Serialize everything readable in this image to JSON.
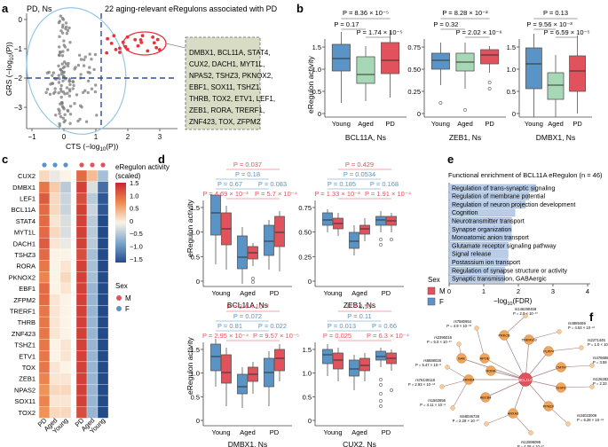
{
  "panels": {
    "a": "a",
    "b": "b",
    "c": "c",
    "d": "d",
    "e": "e",
    "f": "f"
  },
  "panel_a": {
    "label": "PD, Ns",
    "callout": "22 aging-relevant eRegulons associated with PD",
    "xlabel_main": "CTS (−log",
    "xlabel_sub": "10",
    "xlabel_end": "(P))",
    "ylabel_main": "GRS (−log",
    "ylabel_sub": "10",
    "ylabel_end": "(P))",
    "xticks": [
      "−1",
      "0",
      "1",
      "2",
      "3"
    ],
    "yticks": [
      "0",
      "−1",
      "−2",
      "−3"
    ],
    "gene_box_lines": [
      "DMBX1, BCL11A, STAT4,",
      "CUX2, DACH1, MYT1L,",
      "NPAS2, TSHZ3, PKNOX2,",
      "EBF1, SOX11, TSHZ1,",
      "THRB, TOX2, ETV1, LEF1,",
      "ZEB1, RORA, TRERF1,",
      "ZNF423, TOX, ZFPM2"
    ],
    "colors": {
      "grey_points": "#7a7a7a",
      "red_points": "#e8323c",
      "threshold": "#2a4d9b",
      "ellipse_blue": "#8cc3e6",
      "ellipse_red": "#e8323c",
      "box_fill": "#d9dcc4"
    }
  },
  "panel_b": {
    "ylabel": "eRegulon activity",
    "groups": [
      "Young",
      "Aged",
      "PD"
    ],
    "colors": [
      "#5a93c6",
      "#a7d8b6",
      "#e2525c"
    ],
    "plots": [
      {
        "title": "BCL11A, Ns",
        "p_top": "P = 8.36 × 10⁻⁵",
        "p_left": "P = 0.17",
        "p_right": "P = 1.74 × 10⁻⁵",
        "yticks": [
          "0",
          "0.5",
          "1.0",
          "1.5"
        ]
      },
      {
        "title": "ZEB1, Ns",
        "p_top": "P = 8.28 × 10⁻²",
        "p_left": "P = 0.32",
        "p_right": "P = 2.02 × 10⁻⁶",
        "yticks": [
          "0",
          "0.25",
          "0.50",
          "0.75"
        ]
      },
      {
        "title": "DMBX1, Ns",
        "p_top": "P = 0.13",
        "p_left": "P = 9.56 × 10⁻³",
        "p_right": "P = 6.59 × 10⁻⁵",
        "yticks": [
          "0",
          "0.5",
          "1.0",
          "1.5"
        ]
      }
    ]
  },
  "panel_c": {
    "legend_title": "eRegulon activity\n(scaled)",
    "legend_title_1": "eRegulon activity",
    "legend_title_2": "(scaled)",
    "legend_ticks": [
      "1.5",
      "1.0",
      "0.5",
      "0",
      "−0.5",
      "−1.0",
      "−1.5"
    ],
    "sex_title": "Sex",
    "sex_m": "M",
    "sex_f": "F",
    "columns": [
      "PD",
      "Aged",
      "Young",
      "PD",
      "Aged",
      "Young"
    ],
    "genes": [
      "CUX2",
      "DMBX1",
      "LEF1",
      "BCL11A",
      "STAT4",
      "MYT1L",
      "DACH1",
      "TSHZ3",
      "RORA",
      "PKNOX2",
      "EBF1",
      "ZFPM2",
      "TRERF1",
      "THRB",
      "ZNF423",
      "TSHZ1",
      "ETV1",
      "TOX",
      "ZEB1",
      "NPAS2",
      "SOX11",
      "TOX2"
    ],
    "heatmap_values": [
      [
        0.2,
        -0.1,
        0.0,
        1.0,
        0.4,
        -0.5
      ],
      [
        0.9,
        0.3,
        -0.4,
        1.3,
        -0.2,
        -1.2
      ],
      [
        1.1,
        0.2,
        -0.3,
        1.2,
        -0.4,
        -1.4
      ],
      [
        1.0,
        0.2,
        -0.3,
        1.3,
        -0.3,
        -1.4
      ],
      [
        1.0,
        0.1,
        -0.2,
        1.3,
        -0.4,
        -1.5
      ],
      [
        1.0,
        0.2,
        -0.2,
        1.3,
        -0.4,
        -1.5
      ],
      [
        1.1,
        0.1,
        -0.1,
        1.3,
        -0.4,
        -1.5
      ],
      [
        1.0,
        0.0,
        0.0,
        1.2,
        -0.5,
        -1.5
      ],
      [
        0.9,
        0.0,
        0.1,
        1.3,
        -0.5,
        -1.5
      ],
      [
        0.8,
        0.0,
        0.2,
        1.3,
        -0.5,
        -1.5
      ],
      [
        1.0,
        0.0,
        0.1,
        1.3,
        -0.6,
        -1.5
      ],
      [
        1.0,
        0.1,
        0.0,
        1.3,
        -0.6,
        -1.5
      ],
      [
        0.9,
        0.1,
        0.0,
        1.3,
        -0.6,
        -1.5
      ],
      [
        0.9,
        0.1,
        0.0,
        1.3,
        -0.6,
        -1.5
      ],
      [
        0.9,
        0.1,
        0.0,
        1.3,
        -0.6,
        -1.5
      ],
      [
        0.9,
        0.0,
        0.1,
        1.3,
        -0.6,
        -1.5
      ],
      [
        0.9,
        0.0,
        0.1,
        1.3,
        -0.6,
        -1.5
      ],
      [
        0.9,
        0.1,
        0.0,
        1.3,
        -0.6,
        -1.5
      ],
      [
        0.8,
        0.1,
        0.1,
        1.3,
        -0.6,
        -1.5
      ],
      [
        0.7,
        0.2,
        0.2,
        1.3,
        -0.6,
        -1.5
      ],
      [
        0.8,
        0.1,
        0.1,
        1.3,
        -0.6,
        -1.5
      ],
      [
        0.7,
        0.2,
        0.2,
        1.2,
        -0.6,
        -1.5
      ]
    ],
    "sex_colors": {
      "M": "#e2525c",
      "F": "#5a93c6"
    }
  },
  "panel_d": {
    "ylabel": "eRegulon activity",
    "groups": [
      "Young",
      "Aged",
      "PD"
    ],
    "sex_title": "Sex",
    "sex_m": "M",
    "sex_f": "F",
    "colors": {
      "M": "#e2525c",
      "F": "#5a93c6",
      "m_text": "#e2525c",
      "f_text": "#5a93c6"
    },
    "plots": [
      {
        "title": "BCL11A, Ns",
        "p1": "P = 0.037",
        "p2": "P = 0.18",
        "p3a": "P = 0.67",
        "p3b": "P = 0.083",
        "p4a": "P = 4.69 × 10⁻³",
        "p4b": "P = 5.7 × 10⁻⁴",
        "yticks": [
          "0",
          "0.5",
          "1.0",
          "1.5"
        ]
      },
      {
        "title": "ZEB1, Ns",
        "p1": "P = 0.429",
        "p2": "P = 0.0534",
        "p3a": "P = 0.185",
        "p3b": "P = 0.168",
        "p4a": "P = 1.33 × 10⁻³",
        "p4b": "P = 1.91 × 10⁻⁴",
        "yticks": [
          "0",
          "0.25",
          "0.50",
          "0.75"
        ]
      },
      {
        "title": "DMBX1, Ns",
        "p1": "P = 3.4 × 10⁻³",
        "p2": "P = 0.072",
        "p3a": "P = 0.81",
        "p3b": "P = 0.022",
        "p4a": "P = 2.95 × 10⁻⁴",
        "p4b": "P = 9.57 × 10⁻⁵",
        "yticks": [
          "0",
          "0.5",
          "1.0",
          "1.5"
        ]
      },
      {
        "title": "CUX2, Ns",
        "p1": "P = 0.59",
        "p2": "P = 0.11",
        "p3a": "P = 0.013",
        "p3b": "P = 0.66",
        "p4a": "P = 0.025",
        "p4b": "P = 6.3 × 10⁻⁴",
        "yticks": [
          "0",
          "0.5",
          "1.0",
          "1.5"
        ]
      }
    ]
  },
  "panel_e": {
    "title": "Functional enrichment of BCL11A eRegulon (n = 46)",
    "xlabel": "−log",
    "xlabel_sub": "10",
    "xlabel_end": "(FDR)",
    "xticks": [
      "0",
      "1",
      "2",
      "3",
      "4"
    ],
    "bar_color": "#b9cde8",
    "terms": [
      "Regulation of trans-synaptic signaling",
      "Regulation of membrane potential",
      "Regulation of neuron projection development",
      "Cognition",
      "Neurotransmitter transport",
      "Synapse organization",
      "Monoatomic anion transport",
      "Glutamate receptor signaling pathway",
      "Signal release",
      "Postassium ion transport",
      "Regulation of synapse structure or activity",
      "Synaptic transmission, GABAergic"
    ],
    "values": [
      2.5,
      2.3,
      2.2,
      1.9,
      1.8,
      1.8,
      1.8,
      1.7,
      1.7,
      1.7,
      1.6,
      1.6
    ]
  },
  "panel_f": {
    "center": "BCL11A",
    "colors": {
      "center": "#e2525c",
      "node": "#f0a55a",
      "snp": "#f5cda0",
      "edge": "#a58080"
    },
    "nodes": [
      "APOE",
      "PRKCB",
      "TMEM163",
      "PLPP4",
      "CMTM",
      "IGSF8",
      "PPM1F",
      "ANXA3",
      "ABCB4",
      "FRMD4",
      "GAK",
      "RORA"
    ],
    "snps": [
      {
        "id": "rs146290458",
        "p": "P = 2.0 × 10⁻¹⁰"
      },
      {
        "id": "rs7580954",
        "p": "P = 4.9 × 10⁻¹²"
      },
      {
        "id": "rs4889469",
        "p": "P = 4.53 × 10⁻¹²"
      },
      {
        "id": "rs2395016",
        "p": "P = 5.0 × 10⁻¹⁰"
      },
      {
        "id": "rs2271445",
        "p": "P = 1.0 × 10⁻¹²"
      },
      {
        "id": "rs6888028",
        "p": "P = 5.47 × 10⁻⁸"
      },
      {
        "id": "rs4786850",
        "p": "P = 3.59 × 10⁻¹²"
      },
      {
        "id": "rs76149118",
        "p": "P = 2.93 × 10⁻¹³"
      },
      {
        "id": "rs12628235",
        "p": "P = 2.33 × 10⁻¹⁰"
      },
      {
        "id": "rs1563856",
        "p": "P = 4.11 × 10⁻⁸"
      },
      {
        "id": "rs58046728",
        "p": "P = 2.29 × 10⁻¹⁰"
      },
      {
        "id": "rs12596095",
        "p": "P = 4.08 × 10⁻¹⁰"
      },
      {
        "id": "rs34023009",
        "p": "P = 6.28 × 10⁻¹²"
      }
    ]
  }
}
